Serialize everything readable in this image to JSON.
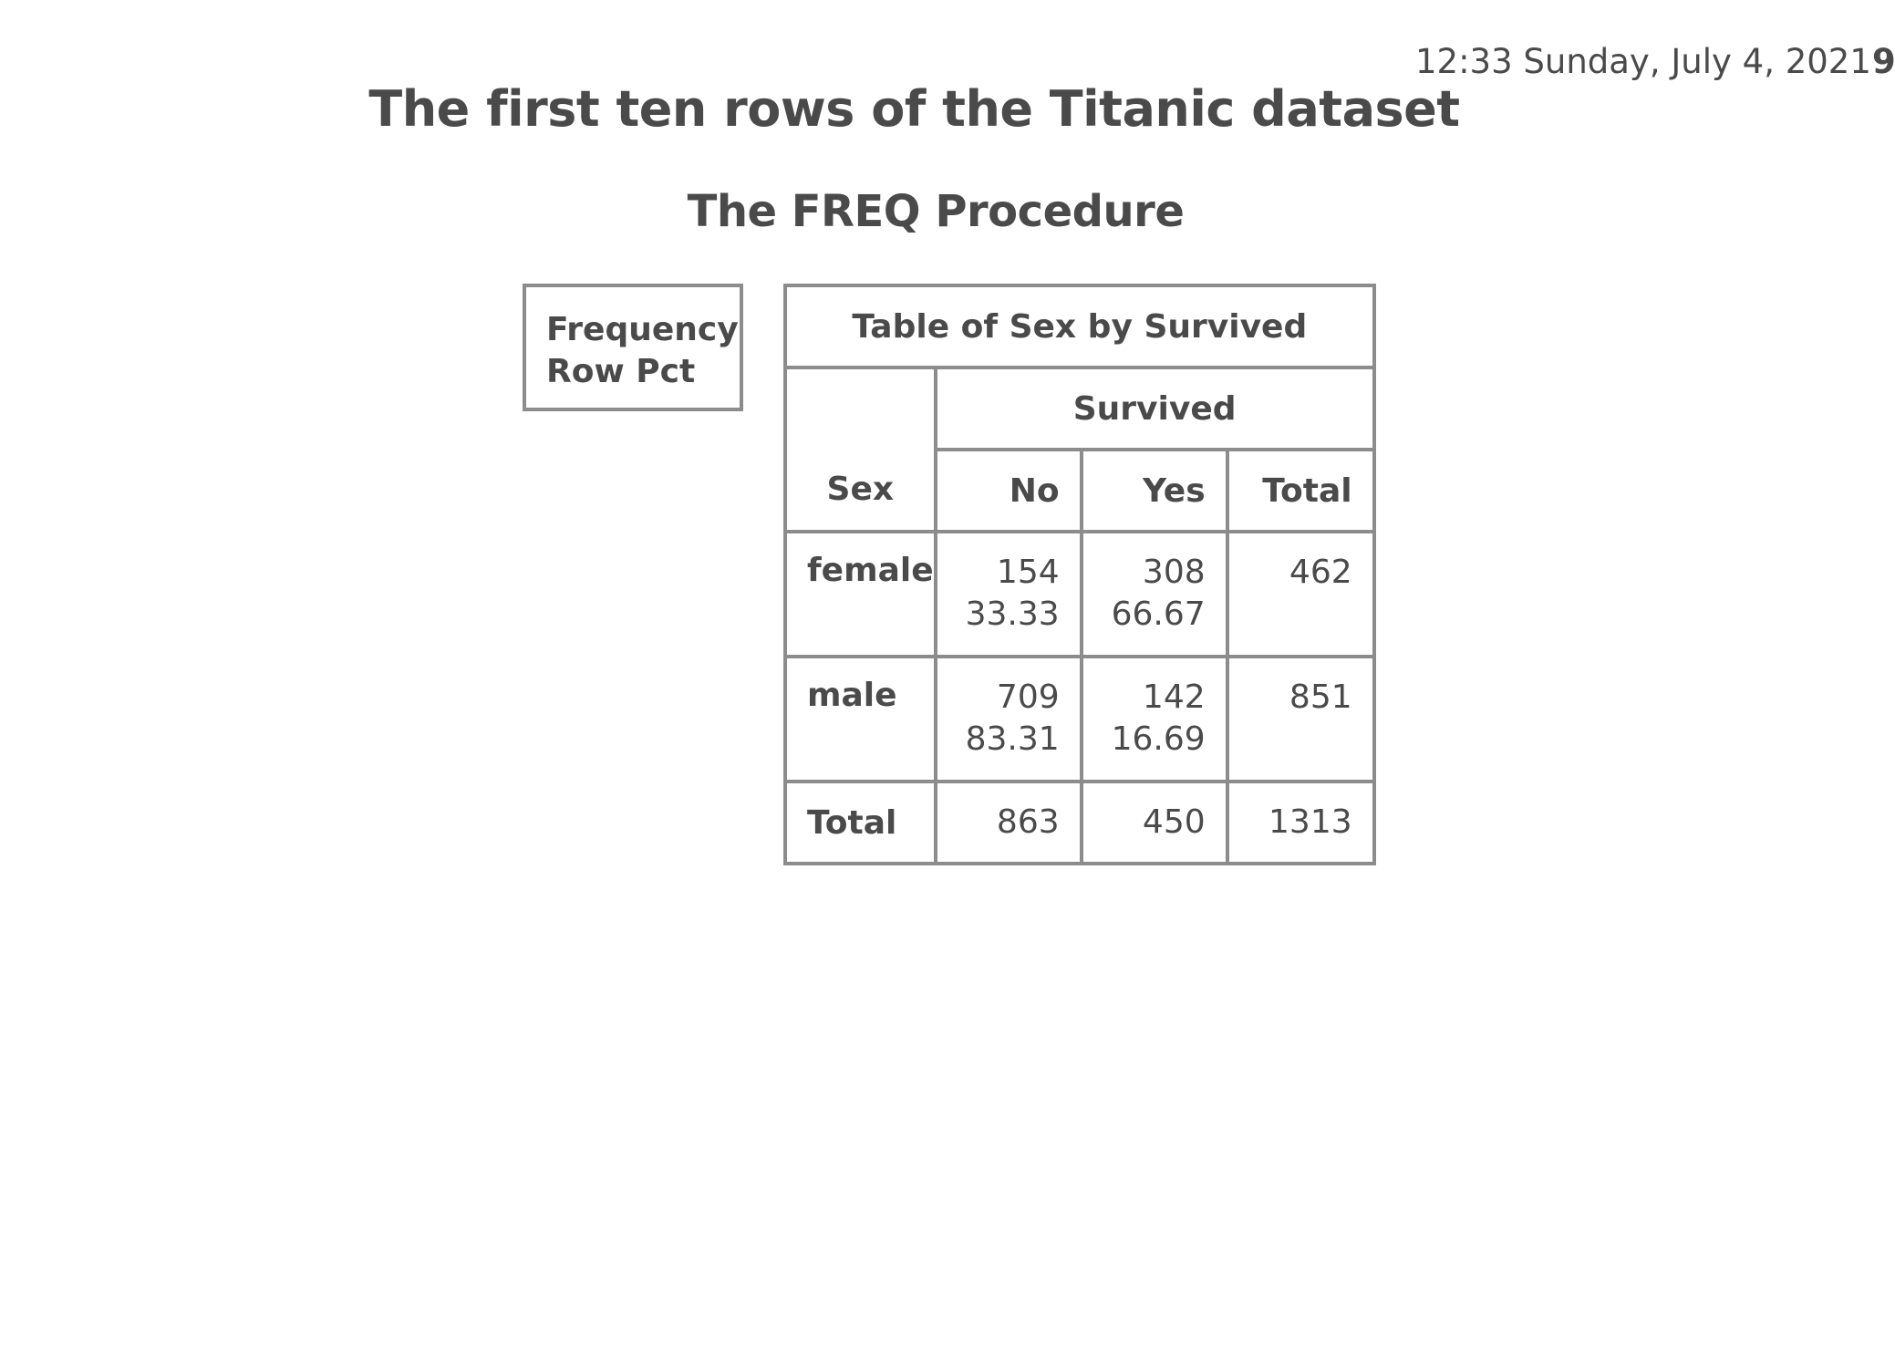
{
  "header": {
    "timestamp": "12:33 Sunday, July 4, 2021",
    "page_number": "9"
  },
  "title": "The first ten rows of the Titanic dataset",
  "procedure": "The FREQ Procedure",
  "legend": {
    "line1": "Frequency",
    "line2": "Row Pct"
  },
  "table": {
    "title": "Table of Sex by Survived",
    "column_group": "Survived",
    "row_header": "Sex",
    "columns": [
      "No",
      "Yes",
      "Total"
    ],
    "rows": [
      {
        "label": "female",
        "no": {
          "freq": "154",
          "pct": "33.33"
        },
        "yes": {
          "freq": "308",
          "pct": "66.67"
        },
        "total": "462"
      },
      {
        "label": "male",
        "no": {
          "freq": "709",
          "pct": "83.31"
        },
        "yes": {
          "freq": "142",
          "pct": "16.69"
        },
        "total": "851"
      }
    ],
    "total_row": {
      "label": "Total",
      "no": "863",
      "yes": "450",
      "total": "1313"
    }
  }
}
